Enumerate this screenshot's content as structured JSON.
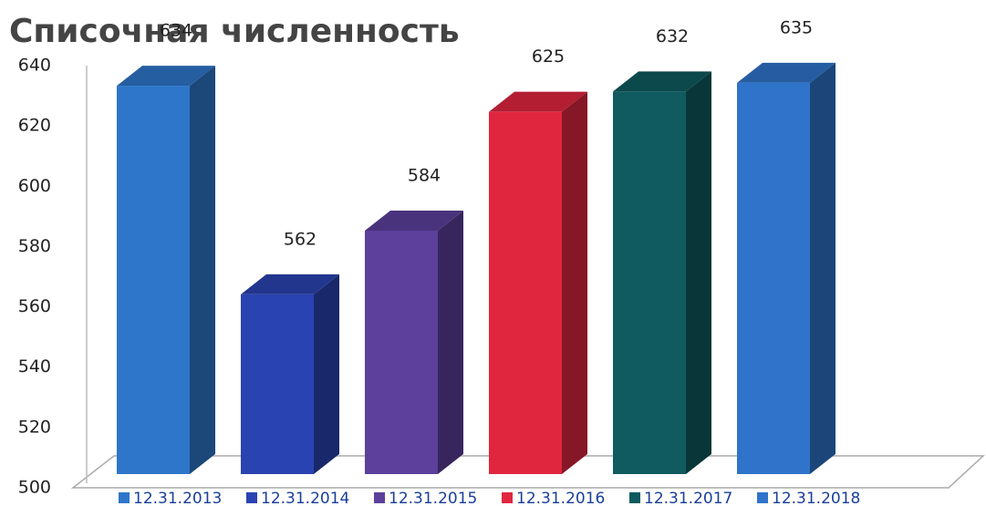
{
  "chart_data": {
    "type": "bar",
    "title": "Списочная численность",
    "categories": [
      null
    ],
    "series": [
      {
        "name": "12.31.2013",
        "color": "#2e76c9",
        "values": [
          634
        ]
      },
      {
        "name": "12.31.2014",
        "color": "#2a43b2",
        "values": [
          562
        ]
      },
      {
        "name": "12.31.2015",
        "color": "#5c409c",
        "values": [
          584
        ]
      },
      {
        "name": "12.31.2016",
        "color": "#e0263f",
        "values": [
          625
        ]
      },
      {
        "name": "12.31.2017",
        "color": "#0f5b5f",
        "values": [
          632
        ]
      },
      {
        "name": "12.31.2018",
        "color": "#2f74ca",
        "values": [
          635
        ]
      }
    ],
    "ylim": [
      500,
      640
    ],
    "yticks": [
      500,
      520,
      540,
      560,
      580,
      600,
      620,
      640
    ],
    "legend": "bottom"
  }
}
